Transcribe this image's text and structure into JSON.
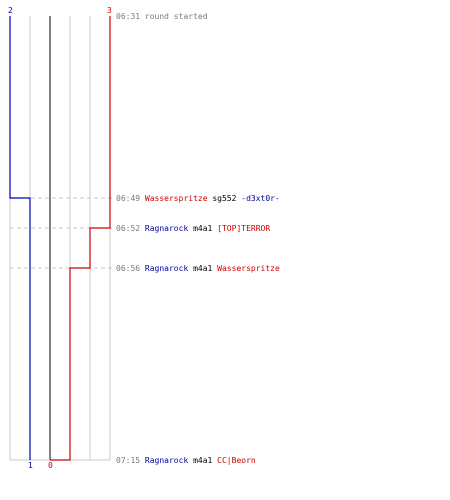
{
  "colors": {
    "blue_team": "#0000b3",
    "red_team": "#cc0000",
    "grid": "#c8c8c8",
    "center": "#808080",
    "text_gray": "#7a7a7a"
  },
  "scores": {
    "blue_top": "2",
    "red_top": "3",
    "blue_bottom": "1",
    "red_bottom": "0"
  },
  "events": [
    {
      "time": "06:31",
      "parts": [
        {
          "text": "round started",
          "team": "gray"
        }
      ]
    },
    {
      "time": "06:49",
      "parts": [
        {
          "text": "Wasserspritze",
          "team": "red"
        },
        {
          "text": " sg552 ",
          "team": "blk"
        },
        {
          "text": "-d3xt0r-",
          "team": "blue"
        }
      ]
    },
    {
      "time": "06:52",
      "parts": [
        {
          "text": "Ragnarock",
          "team": "blue"
        },
        {
          "text": " m4a1 ",
          "team": "blk"
        },
        {
          "text": "[TOP]TERROR",
          "team": "red"
        }
      ]
    },
    {
      "time": "06:56",
      "parts": [
        {
          "text": "Ragnarock",
          "team": "blue"
        },
        {
          "text": " m4a1 ",
          "team": "blk"
        },
        {
          "text": "Wasserspritze",
          "team": "red"
        }
      ]
    },
    {
      "time": "07:15",
      "parts": [
        {
          "text": "Ragnarock",
          "team": "blue"
        },
        {
          "text": " m4a1 ",
          "team": "blk"
        },
        {
          "text": "CC|Beorn",
          "team": "red"
        }
      ]
    }
  ]
}
